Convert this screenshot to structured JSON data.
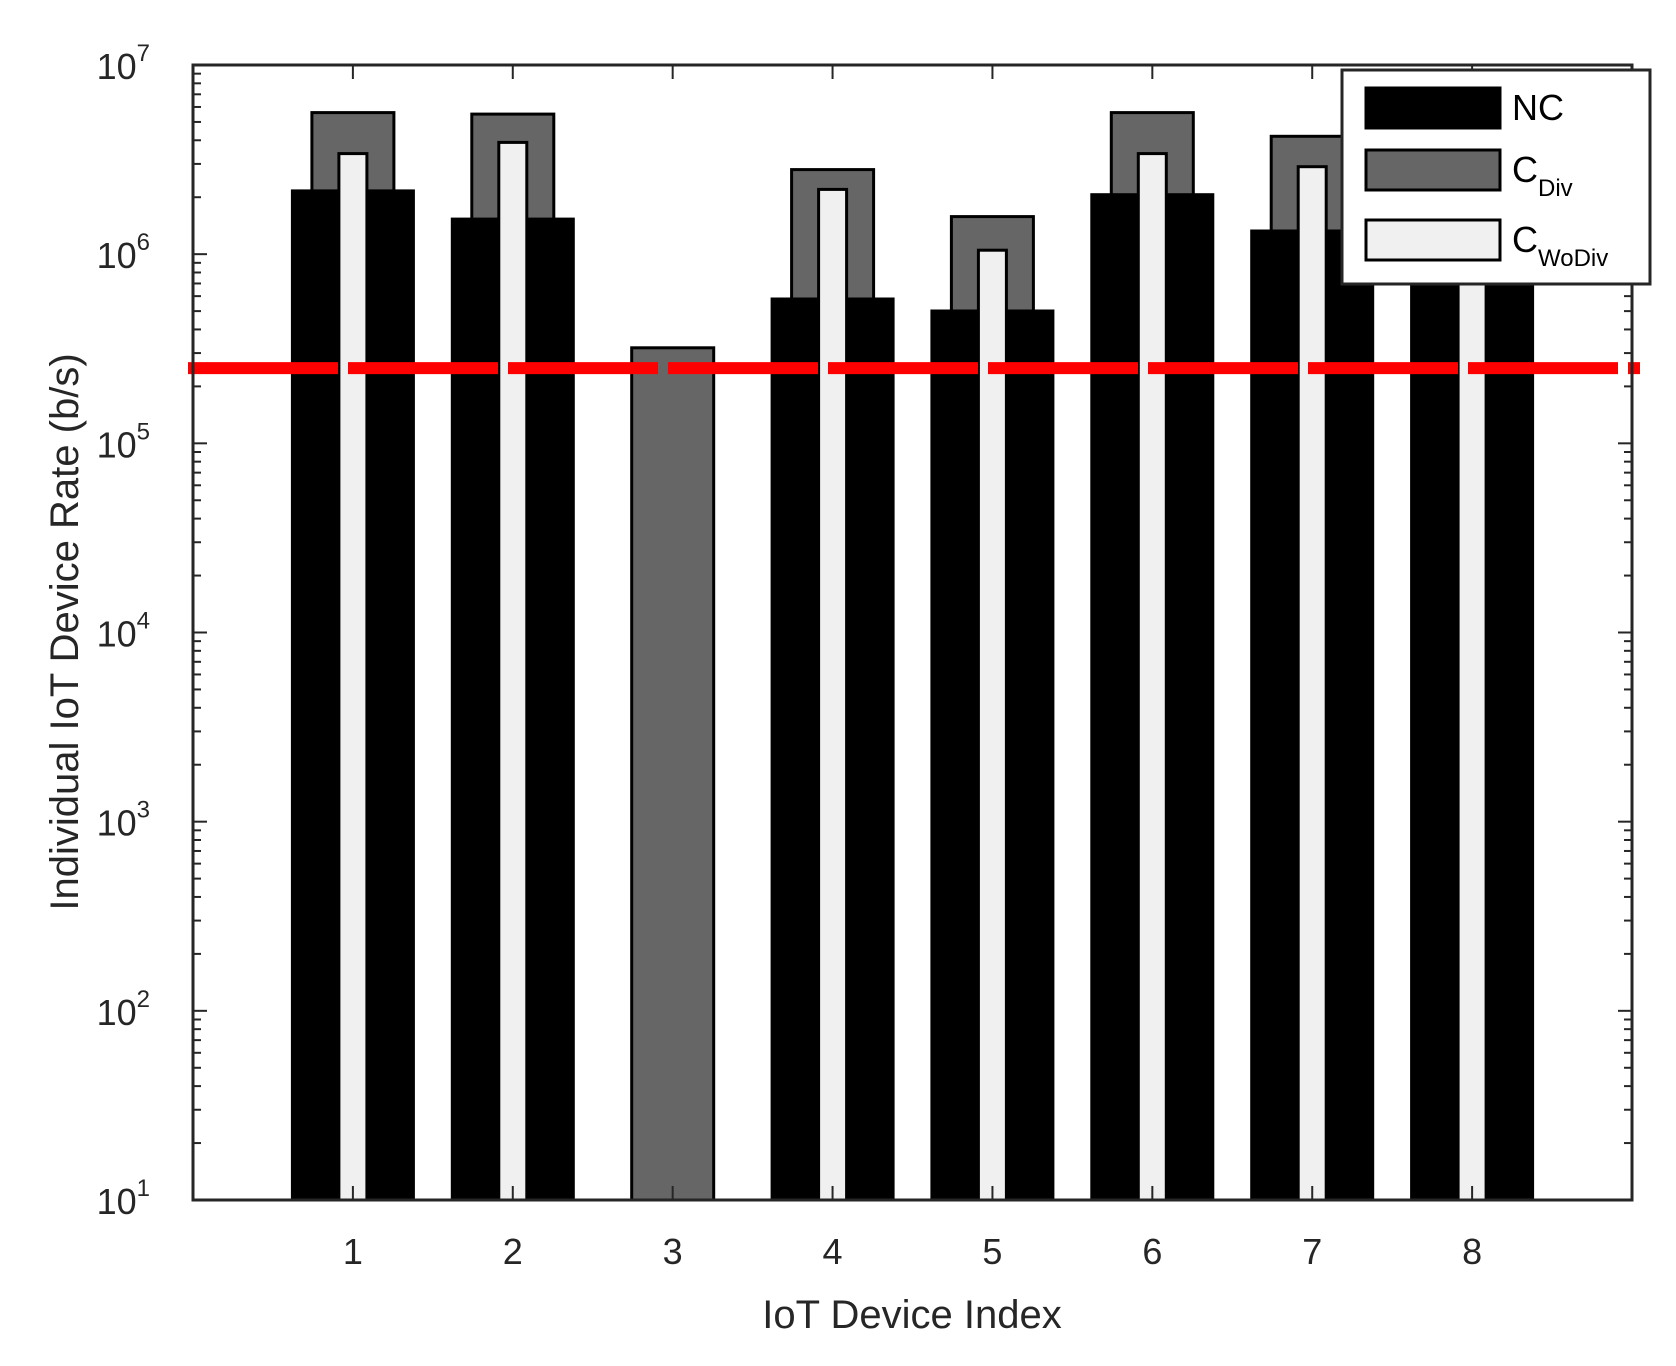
{
  "chart_data": {
    "type": "bar",
    "yscale": "log",
    "xlabel": "IoT Device Index",
    "ylabel": "Individual IoT Device Rate (b/s)",
    "ylim": [
      10,
      10000000
    ],
    "ytick_base": "10",
    "ytick_exponents": [
      "1",
      "2",
      "3",
      "4",
      "5",
      "6",
      "7"
    ],
    "categories": [
      "1",
      "2",
      "3",
      "4",
      "5",
      "6",
      "7",
      "8"
    ],
    "series": [
      {
        "name": "NC",
        "color": "#000000",
        "values": [
          2200000,
          1560000,
          10,
          590000,
          510000,
          2100000,
          1350000,
          1050000
        ]
      },
      {
        "name": "C",
        "name_sub": "Div",
        "color": "#666666",
        "values": [
          5600000,
          5500000,
          320000,
          2800000,
          1580000,
          5600000,
          4200000,
          4200000
        ]
      },
      {
        "name": "C",
        "name_sub": "WoDiv",
        "color": "#f0f0f0",
        "values": [
          3400000,
          3900000,
          10,
          2200000,
          1050000,
          3400000,
          2900000,
          3200000
        ]
      }
    ],
    "threshold": {
      "value": 250000,
      "color": "#ff0000",
      "style": "dashed"
    },
    "legend_position": "top-right"
  }
}
